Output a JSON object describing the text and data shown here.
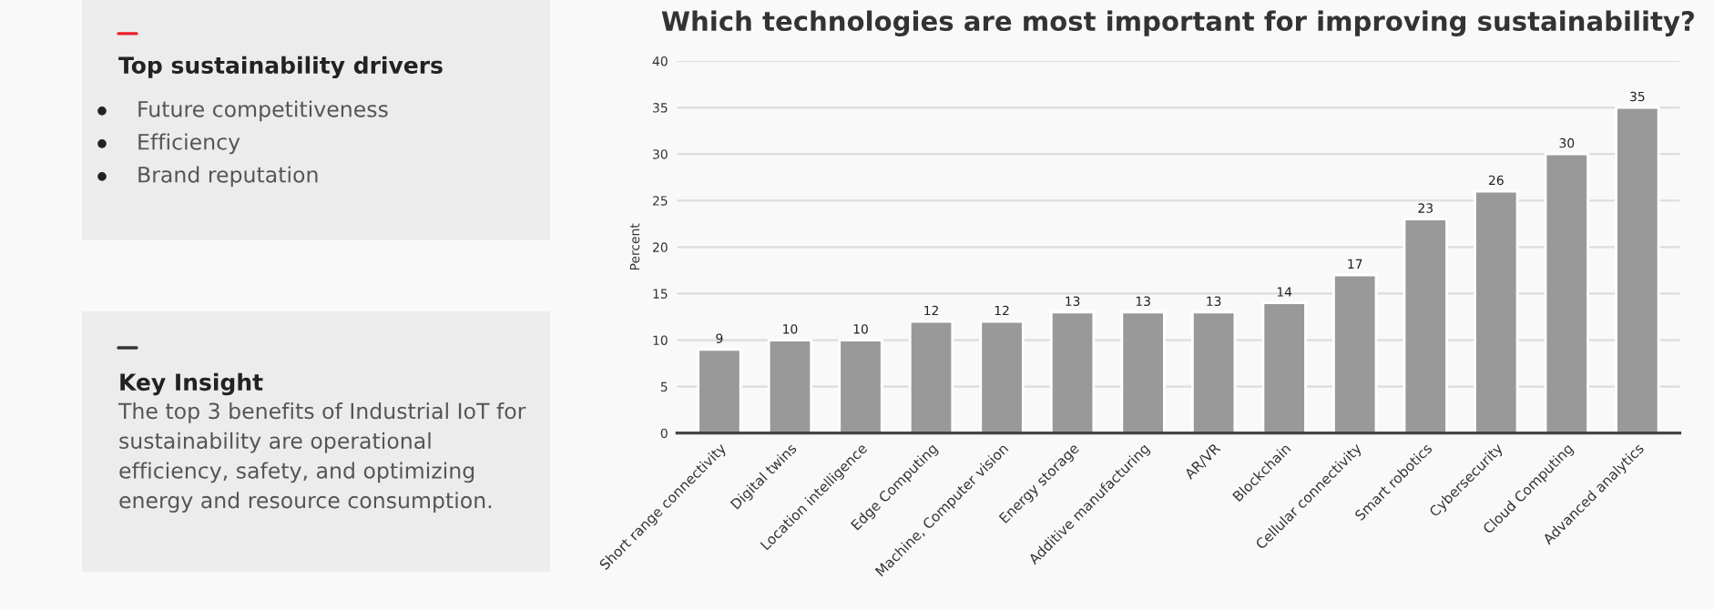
{
  "chart_data": [
    {
      "type": "other",
      "title": "Top sustainability drivers",
      "color": "#e8202a",
      "annotations": [
        "Future competitiveness",
        "Efficiency",
        "Brand reputation"
      ]
    },
    {
      "type": "other",
      "title": "Key Insight",
      "color": "#333333",
      "annotations": [
        "The top 3 benefits of Industrial IoT for sustainability are operational efficiency, safety, and optimizing energy and resource consumption."
      ]
    },
    {
      "type": "bar",
      "title": "Which technologies are most important for improving sustainability?",
      "ylabel": "Percent",
      "categories": [
        "Short range connectivity",
        "Digital twins",
        "Location intelligence",
        "Edge Computing",
        "Machine, Computer vision",
        "Energy storage",
        "Additive manufacturing",
        "AR/VR",
        "Blockchain",
        "Cellular connectivity",
        "Smart robotics",
        "Cybersecurity",
        "Cloud Computing",
        "Advanced analytics"
      ],
      "values": [
        9,
        10,
        10,
        12,
        12,
        13,
        13,
        13,
        14,
        17,
        23,
        26,
        30,
        35
      ],
      "color": "#999999",
      "ylim": [
        0,
        40
      ],
      "yticks": [
        0,
        5,
        10,
        15,
        20,
        25,
        30,
        35,
        40
      ],
      "grid": "y",
      "data_labels": true
    }
  ]
}
